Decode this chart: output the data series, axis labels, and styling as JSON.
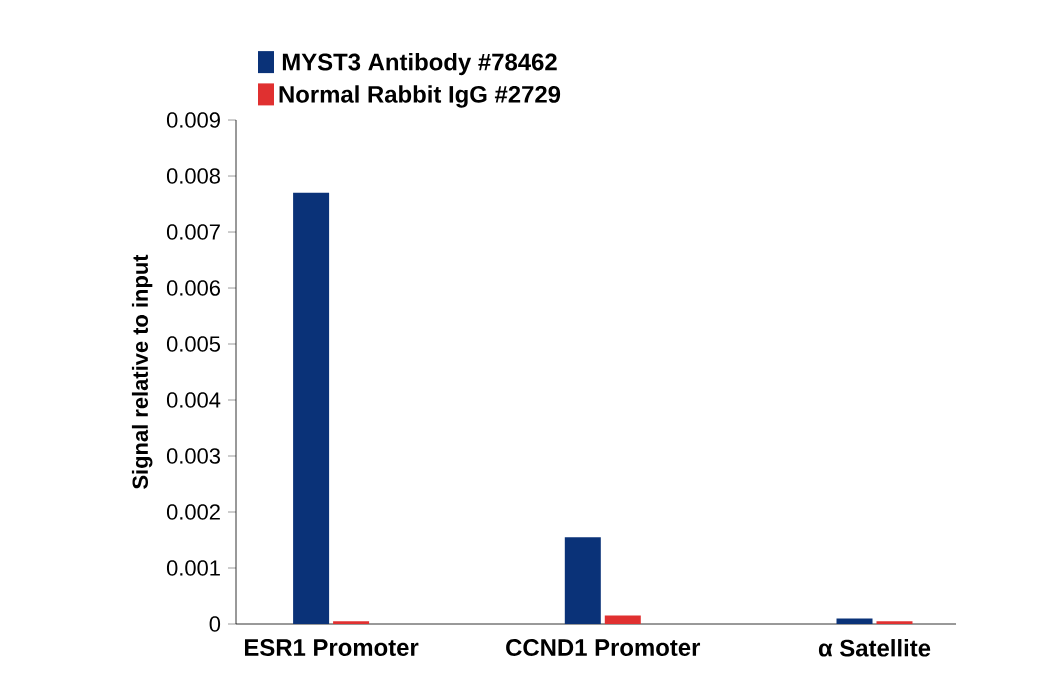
{
  "chart_data": {
    "type": "bar",
    "ylabel": "Signal relative to input",
    "categories": [
      "ESR1 Promoter",
      "CCND1 Promoter",
      "α Satellite"
    ],
    "series": [
      {
        "name": "MYST3 Antibody #78462",
        "color": "#0a3278",
        "values": [
          0.0077,
          0.00155,
          0.0001
        ]
      },
      {
        "name": "Normal Rabbit IgG #2729",
        "color": "#e03030",
        "values": [
          5e-05,
          0.00015,
          5e-05
        ]
      }
    ],
    "ylim": [
      0,
      0.009
    ],
    "yticks": [
      0,
      0.001,
      0.002,
      0.003,
      0.004,
      0.005,
      0.006,
      0.007,
      0.008,
      0.009
    ],
    "legend": "top left"
  }
}
